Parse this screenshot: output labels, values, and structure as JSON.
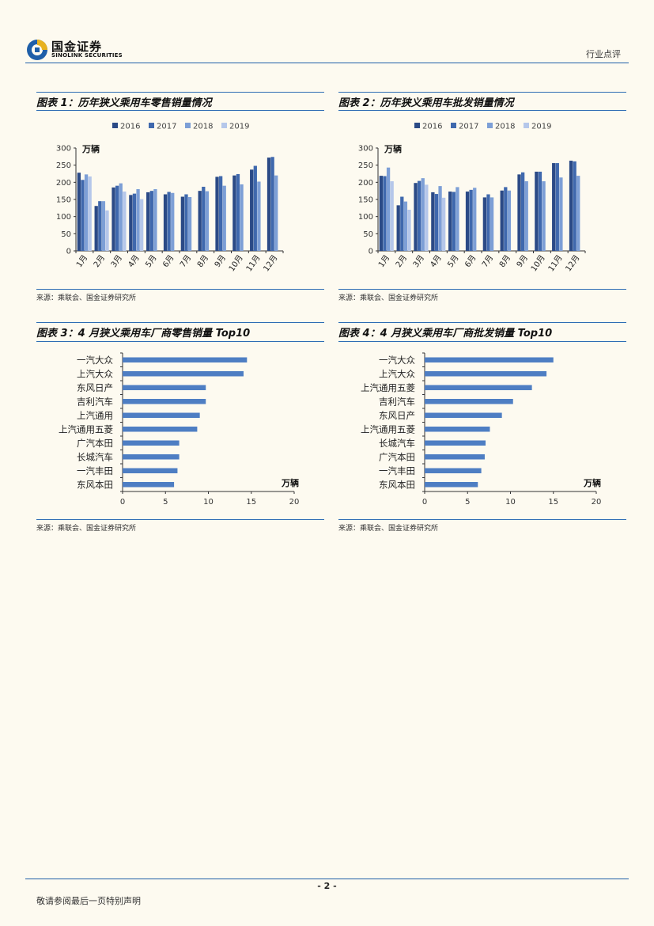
{
  "header": {
    "logo_cn": "国金证券",
    "logo_en": "SINOLINK SECURITIES",
    "category": "行业点评"
  },
  "colors": {
    "accent": "#1f5fa8",
    "series": [
      "#2b4a86",
      "#3f68ad",
      "#7d9fd6",
      "#b5c7ea"
    ],
    "bar_h": "#4e7ec3"
  },
  "figures": [
    {
      "title": "图表 1：历年狭义乘用车零售销量情况",
      "source": "来源：乘联会、国金证券研究所",
      "unit": "万辆"
    },
    {
      "title": "图表 2：历年狭义乘用车批发销量情况",
      "source": "来源：乘联会、国金证券研究所",
      "unit": "万辆"
    },
    {
      "title": "图表 3：4 月狭义乘用车厂商零售销量 Top10",
      "source": "来源：乘联会、国金证券研究所",
      "unit": "万辆"
    },
    {
      "title": "图表 4：4 月狭义乘用车厂商批发销量 Top10",
      "source": "来源：乘联会、国金证券研究所",
      "unit": "万辆"
    }
  ],
  "chart_data": [
    {
      "type": "bar",
      "categories": [
        "1月",
        "2月",
        "3月",
        "4月",
        "5月",
        "6月",
        "7月",
        "8月",
        "9月",
        "10月",
        "11月",
        "12月"
      ],
      "series": [
        {
          "name": "2016",
          "values": [
            228,
            131,
            185,
            163,
            171,
            165,
            158,
            175,
            216,
            220,
            237,
            272
          ]
        },
        {
          "name": "2017",
          "values": [
            207,
            145,
            190,
            167,
            175,
            172,
            165,
            187,
            218,
            224,
            248,
            274
          ]
        },
        {
          "name": "2018",
          "values": [
            223,
            145,
            197,
            180,
            180,
            169,
            157,
            174,
            190,
            194,
            202,
            220
          ]
        },
        {
          "name": "2019",
          "values": [
            217,
            118,
            173,
            151,
            null,
            null,
            null,
            null,
            null,
            null,
            null,
            null
          ]
        }
      ],
      "ylim": [
        0,
        300
      ],
      "yticks": [
        0,
        50,
        100,
        150,
        200,
        250,
        300
      ],
      "legend": "top",
      "grid": false
    },
    {
      "type": "bar",
      "categories": [
        "1月",
        "2月",
        "3月",
        "4月",
        "5月",
        "6月",
        "7月",
        "8月",
        "9月",
        "10月",
        "11月",
        "12月"
      ],
      "series": [
        {
          "name": "2016",
          "values": [
            219,
            133,
            198,
            171,
            173,
            173,
            156,
            176,
            223,
            231,
            256,
            263
          ]
        },
        {
          "name": "2017",
          "values": [
            218,
            158,
            204,
            166,
            172,
            178,
            165,
            186,
            229,
            231,
            256,
            261
          ]
        },
        {
          "name": "2018",
          "values": [
            243,
            144,
            212,
            189,
            186,
            184,
            156,
            176,
            203,
            203,
            214,
            219
          ]
        },
        {
          "name": "2019",
          "values": [
            203,
            120,
            193,
            155,
            null,
            null,
            null,
            null,
            null,
            null,
            null,
            null
          ]
        }
      ],
      "ylim": [
        0,
        300
      ],
      "yticks": [
        0,
        50,
        100,
        150,
        200,
        250,
        300
      ],
      "legend": "top",
      "grid": false
    },
    {
      "type": "bar",
      "orientation": "horizontal",
      "categories": [
        "一汽大众",
        "上汽大众",
        "东风日产",
        "吉利汽车",
        "上汽通用",
        "上汽通用五菱",
        "广汽本田",
        "长城汽车",
        "一汽丰田",
        "东风本田"
      ],
      "values": [
        14.5,
        14.1,
        9.7,
        9.7,
        9.0,
        8.7,
        6.6,
        6.6,
        6.4,
        6.0
      ],
      "xlim": [
        0,
        20
      ],
      "xticks": [
        0,
        5,
        10,
        15,
        20
      ]
    },
    {
      "type": "bar",
      "orientation": "horizontal",
      "categories": [
        "一汽大众",
        "上汽大众",
        "上汽通用五菱",
        "吉利汽车",
        "东风日产",
        "上汽通用五菱",
        "长城汽车",
        "广汽本田",
        "一汽丰田",
        "东风本田"
      ],
      "values": [
        15.0,
        14.2,
        12.5,
        10.3,
        9.0,
        7.6,
        7.1,
        7.0,
        6.6,
        6.2
      ],
      "xlim": [
        0,
        20
      ],
      "xticks": [
        0,
        5,
        10,
        15,
        20
      ]
    }
  ],
  "footer": {
    "page": "- 2 -",
    "note": "敬请参阅最后一页特别声明"
  }
}
